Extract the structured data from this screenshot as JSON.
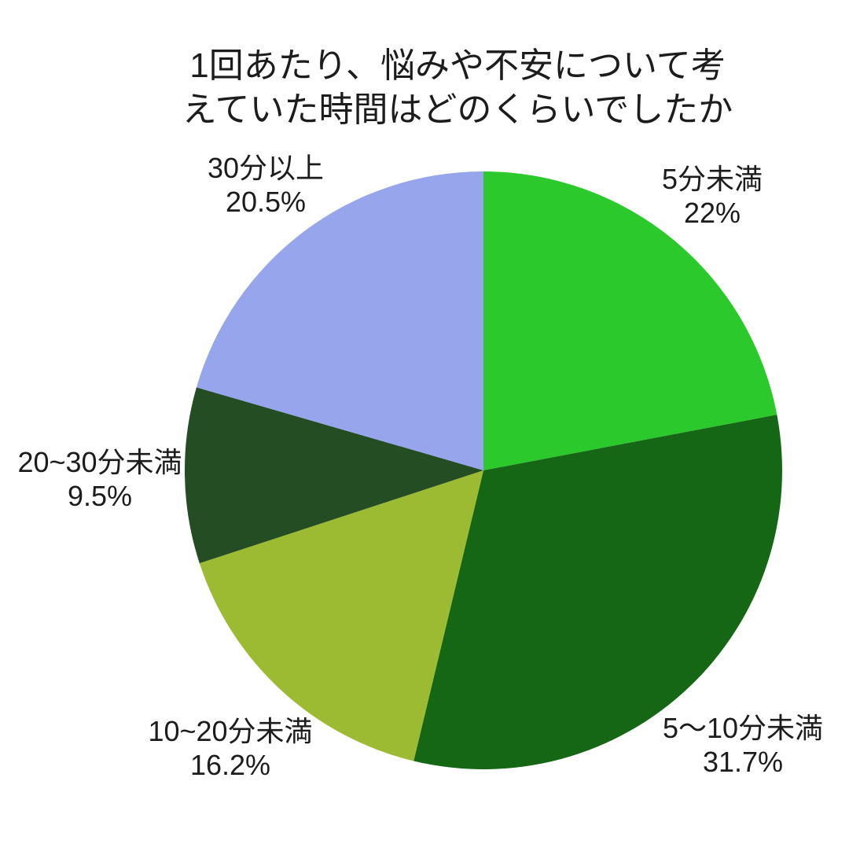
{
  "title": {
    "line1": "1回あたり、悩みや不安について考",
    "line2": "えていた時間はどのくらいでしたか"
  },
  "chart_data": {
    "type": "pie",
    "title": "1回あたり、悩みや不安について考えていた時間はどのくらいでしたか",
    "start_angle_deg": 0,
    "direction": "clockwise",
    "legend_position": "none",
    "labels_position": "outside",
    "slices": [
      {
        "label": "5分未満",
        "pct_label": "22%",
        "value": 22.0,
        "color": "#2bc92b"
      },
      {
        "label": "5〜10分未満",
        "pct_label": "31.7%",
        "value": 31.7,
        "color": "#156715"
      },
      {
        "label": "10~20分未満",
        "pct_label": "16.2%",
        "value": 16.2,
        "color": "#9dbb32"
      },
      {
        "label": "20~30分未満",
        "pct_label": "9.5%",
        "value": 9.5,
        "color": "#244d23"
      },
      {
        "label": "30分以上",
        "pct_label": "20.5%",
        "value": 20.5,
        "color": "#97a5ec"
      }
    ]
  }
}
